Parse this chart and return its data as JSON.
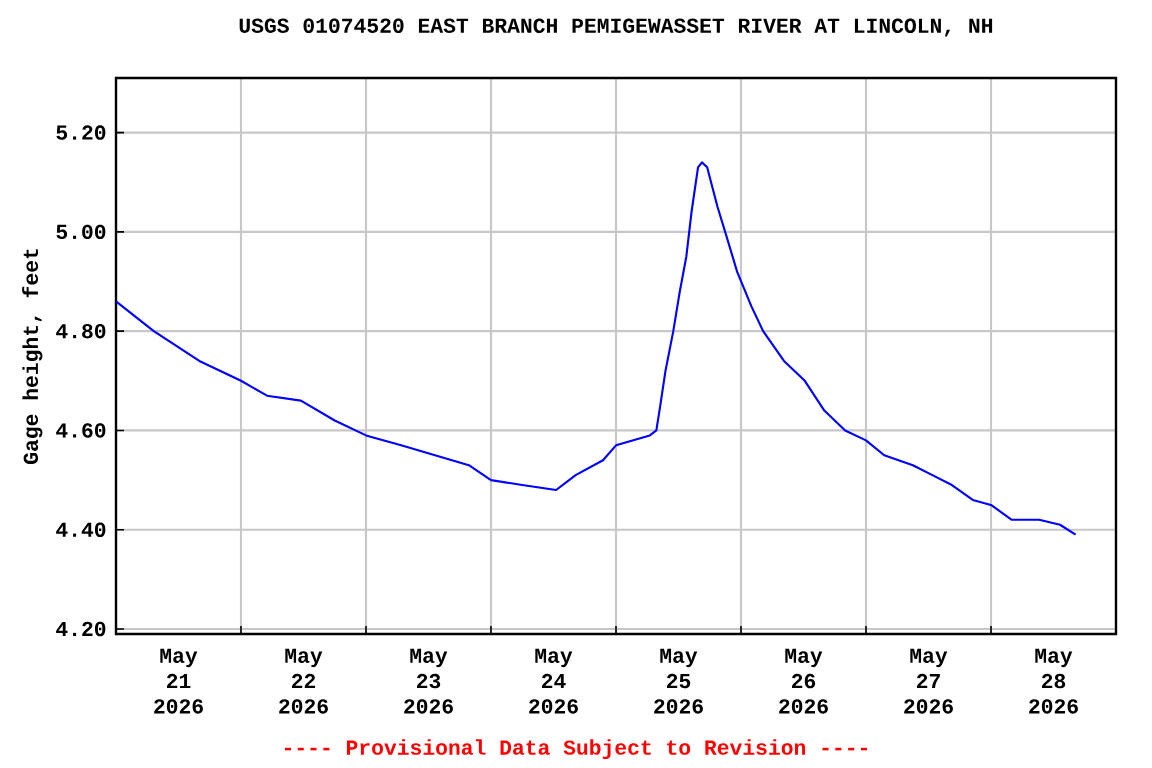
{
  "chart_data": {
    "type": "line",
    "title": "USGS 01074520 EAST BRANCH PEMIGEWASSET RIVER AT LINCOLN, NH",
    "ylabel": "Gage height, feet",
    "annotations": [
      "---- Provisional Data Subject to Revision ----"
    ],
    "x": [
      "2026-05-21T00:00",
      "2026-05-21T07:15",
      "2026-05-21T16:00",
      "2026-05-22T00:00",
      "2026-05-22T05:00",
      "2026-05-22T11:30",
      "2026-05-22T18:00",
      "2026-05-23T00:00",
      "2026-05-23T06:45",
      "2026-05-23T13:15",
      "2026-05-23T19:45",
      "2026-05-24T00:00",
      "2026-05-24T06:00",
      "2026-05-24T12:30",
      "2026-05-24T16:15",
      "2026-05-24T21:30",
      "2026-05-25T00:00",
      "2026-05-25T06:30",
      "2026-05-25T07:45",
      "2026-05-25T08:30",
      "2026-05-25T09:30",
      "2026-05-25T11:00",
      "2026-05-25T12:15",
      "2026-05-25T13:30",
      "2026-05-25T14:30",
      "2026-05-25T15:45",
      "2026-05-25T16:30",
      "2026-05-25T17:30",
      "2026-05-25T19:30",
      "2026-05-25T21:15",
      "2026-05-25T23:15",
      "2026-05-26T02:00",
      "2026-05-26T04:15",
      "2026-05-26T08:15",
      "2026-05-26T12:15",
      "2026-05-26T16:00",
      "2026-05-26T20:00",
      "2026-05-27T00:00",
      "2026-05-27T03:30",
      "2026-05-27T09:00",
      "2026-05-27T12:45",
      "2026-05-27T16:30",
      "2026-05-27T20:30",
      "2026-05-28T00:00",
      "2026-05-28T04:00",
      "2026-05-28T09:15",
      "2026-05-28T13:15",
      "2026-05-28T16:15"
    ],
    "series": [
      {
        "color": "#0000ff",
        "values": [
          4.86,
          4.8,
          4.74,
          4.7,
          4.67,
          4.66,
          4.62,
          4.59,
          4.57,
          4.55,
          4.53,
          4.5,
          4.49,
          4.48,
          4.51,
          4.54,
          4.57,
          4.59,
          4.6,
          4.65,
          4.72,
          4.8,
          4.88,
          4.95,
          5.04,
          5.13,
          5.14,
          5.13,
          5.05,
          4.99,
          4.92,
          4.85,
          4.8,
          4.74,
          4.7,
          4.64,
          4.6,
          4.58,
          4.55,
          4.53,
          4.51,
          4.49,
          4.46,
          4.45,
          4.42,
          4.42,
          4.41,
          4.39
        ]
      }
    ],
    "xlim": [
      "2026-05-21T00:00",
      "2026-05-29T00:00"
    ],
    "xticks": [
      {
        "value": "2026-05-22T00:00",
        "label": null
      },
      {
        "value": "2026-05-23T00:00",
        "label": null
      },
      {
        "value": "2026-05-24T00:00",
        "label": null
      },
      {
        "value": "2026-05-25T00:00",
        "label": null
      },
      {
        "value": "2026-05-26T00:00",
        "label": null
      },
      {
        "value": "2026-05-27T00:00",
        "label": null
      },
      {
        "value": "2026-05-28T00:00",
        "label": null
      },
      {
        "value": "2026-05-21T12:00",
        "label": "May 21 2026"
      },
      {
        "value": "2026-05-22T12:00",
        "label": "May 22 2026"
      },
      {
        "value": "2026-05-23T12:00",
        "label": "May 23 2026"
      },
      {
        "value": "2026-05-24T12:00",
        "label": "May 24 2026"
      },
      {
        "value": "2026-05-25T12:00",
        "label": "May 25 2026"
      },
      {
        "value": "2026-05-26T12:00",
        "label": "May 26 2026"
      },
      {
        "value": "2026-05-27T12:00",
        "label": "May 27 2026"
      },
      {
        "value": "2026-05-28T12:00",
        "label": "May 28 2026"
      }
    ],
    "ylim": [
      4.19,
      5.31
    ],
    "yticks": [
      {
        "value": 4.2,
        "label": "4.20"
      },
      {
        "value": 4.4,
        "label": "4.40"
      },
      {
        "value": 4.6,
        "label": "4.60"
      },
      {
        "value": 4.8,
        "label": "4.80"
      },
      {
        "value": 5.0,
        "label": "5.00"
      },
      {
        "value": 5.2,
        "label": "5.20"
      }
    ],
    "grid": true,
    "marker": "none",
    "line_style": "solid"
  }
}
